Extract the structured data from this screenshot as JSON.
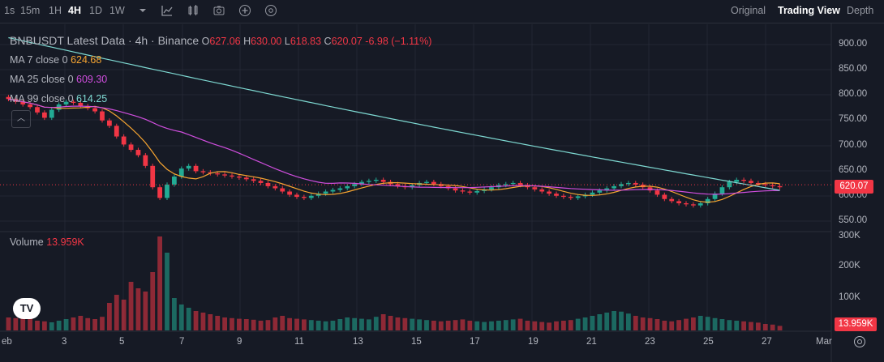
{
  "toolbar": {
    "intervals": [
      "1s",
      "15m",
      "1H",
      "4H",
      "1D",
      "1W"
    ],
    "active_interval": "4H",
    "views": [
      "Original",
      "Trading View",
      "Depth"
    ],
    "active_view": "Trading View"
  },
  "legend": {
    "symbol": "BNBUSDT Latest Data · 4h · Binance",
    "open_label": "O",
    "open": "627.06",
    "high_label": "H",
    "high": "630.00",
    "low_label": "L",
    "low": "618.83",
    "close_label": "C",
    "close": "620.07",
    "change": "-6.98 (−1.11%)",
    "ma7_label": "MA 7 close 0",
    "ma7_value": "624.68",
    "ma7_color": "#f7a531",
    "ma25_label": "MA 25 close 0",
    "ma25_value": "609.30",
    "ma25_color": "#d04ede",
    "ma99_label": "MA 99 close 0",
    "ma99_value": "614.25",
    "ma99_color": "#7ed9d2",
    "volume_label": "Volume",
    "volume_value": "13.959K"
  },
  "price_axis": [
    "900.00",
    "850.00",
    "800.00",
    "750.00",
    "700.00",
    "650.00",
    "600.00",
    "550.00"
  ],
  "volume_axis": [
    "300K",
    "200K",
    "100K"
  ],
  "price_tag": "620.07",
  "volume_tag": "13.959K",
  "time_axis": [
    "eb",
    "3",
    "5",
    "7",
    "9",
    "11",
    "13",
    "15",
    "17",
    "19",
    "21",
    "23",
    "25",
    "27",
    "Mar"
  ],
  "colors": {
    "up": "#22ab94",
    "down": "#f23645",
    "background": "#161a25"
  },
  "chart_data": {
    "type": "candlestick",
    "ylim": [
      540,
      925
    ],
    "volume_ylim": [
      0,
      300000
    ],
    "x_ticks": [
      "eb",
      "3",
      "5",
      "7",
      "9",
      "11",
      "13",
      "15",
      "17",
      "19",
      "21",
      "23",
      "25",
      "27",
      "Mar"
    ],
    "close_series": [
      785,
      780,
      775,
      770,
      760,
      750,
      765,
      775,
      780,
      778,
      772,
      768,
      762,
      745,
      735,
      715,
      700,
      690,
      680,
      660,
      620,
      600,
      625,
      640,
      655,
      660,
      650,
      648,
      646,
      644,
      642,
      640,
      638,
      635,
      632,
      628,
      622,
      618,
      612,
      606,
      602,
      600,
      604,
      608,
      612,
      615,
      618,
      622,
      626,
      630,
      632,
      634,
      630,
      626,
      622,
      620,
      624,
      628,
      630,
      626,
      622,
      618,
      614,
      612,
      610,
      613,
      616,
      620,
      624,
      626,
      628,
      624,
      620,
      616,
      612,
      608,
      604,
      602,
      600,
      603,
      606,
      610,
      614,
      618,
      622,
      626,
      628,
      625,
      620,
      614,
      606,
      598,
      594,
      590,
      588,
      586,
      590,
      598,
      608,
      620,
      630,
      634,
      632,
      628,
      626,
      624,
      622,
      620
    ],
    "volume_series": [
      40,
      38,
      55,
      45,
      30,
      28,
      25,
      30,
      35,
      40,
      45,
      38,
      35,
      42,
      85,
      110,
      95,
      150,
      130,
      120,
      180,
      290,
      240,
      100,
      80,
      70,
      60,
      55,
      50,
      45,
      40,
      38,
      36,
      35,
      33,
      30,
      32,
      40,
      45,
      38,
      36,
      34,
      32,
      30,
      28,
      30,
      35,
      40,
      38,
      36,
      34,
      42,
      50,
      45,
      40,
      38,
      36,
      34,
      32,
      30,
      28,
      30,
      32,
      34,
      30,
      28,
      26,
      28,
      30,
      32,
      34,
      36,
      30,
      28,
      26,
      24,
      28,
      30,
      32,
      36,
      40,
      45,
      50,
      55,
      60,
      58,
      52,
      45,
      40,
      38,
      35,
      30,
      28,
      32,
      36,
      40,
      45,
      42,
      38,
      35,
      32,
      30,
      28,
      26,
      24,
      20,
      18,
      14
    ],
    "ma7_last": 624.68,
    "ma25_last": 609.3,
    "ma99_last": 614.25
  }
}
